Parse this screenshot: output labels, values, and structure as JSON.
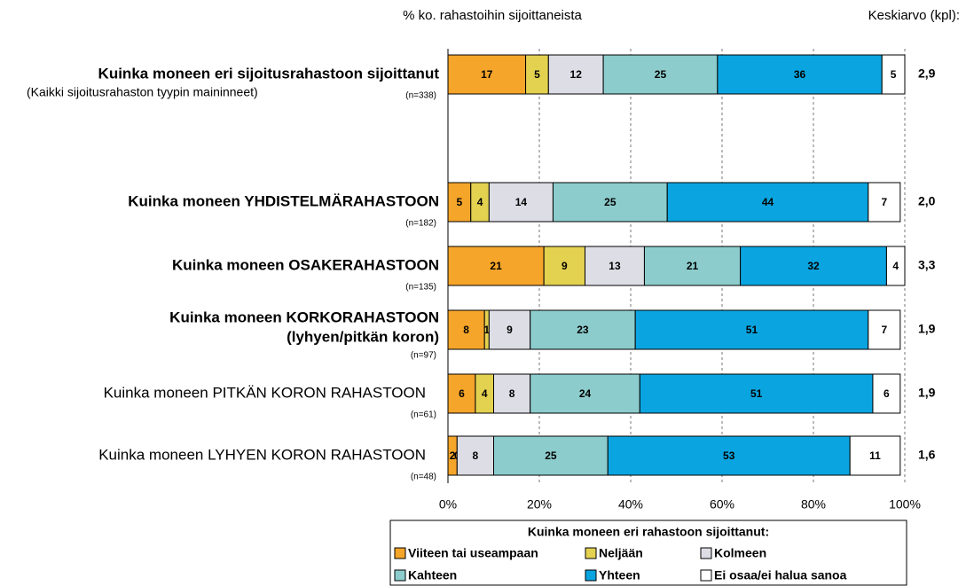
{
  "chart_data": {
    "type": "stacked-bar-horizontal",
    "value_axis_title": "% ko. rahastoihin sijoittaneista",
    "mean_title": "Keskiarvo (kpl):",
    "legend_title": "Kuinka moneen eri rahastoon sijoittanut:",
    "categories": [
      [
        "Kuinka moneen eri sijoitusrahastoon sijoittanut"
      ],
      [
        "Kuinka moneen YHDISTELMÄRAHASTOON"
      ],
      [
        "Kuinka moneen OSAKERAHASTOON"
      ],
      [
        "Kuinka moneen KORKORAHASTOON",
        "(lyhyen/pitkän koron)"
      ],
      [
        "Kuinka moneen PITKÄN KORON RAHASTOON"
      ],
      [
        "Kuinka moneen LYHYEN KORON RAHASTOON"
      ]
    ],
    "category_bold": [
      true,
      true,
      true,
      true,
      false,
      false
    ],
    "notes": [
      "(Kaikki sijoitusrahaston tyypin maininneet)",
      null,
      null,
      null,
      null,
      null
    ],
    "n_labels": [
      "(n=338)",
      "(n=182)",
      "(n=135)",
      "(n=97)",
      "(n=61)",
      "(n=48)"
    ],
    "means": [
      2.9,
      2.0,
      3.3,
      1.9,
      1.9,
      1.6
    ],
    "mean_labels": [
      "2,9",
      "2,0",
      "3,3",
      "1,9",
      "1,9",
      "1,6"
    ],
    "series": [
      {
        "name": "Viiteen tai useampaan",
        "color": "#f5a52a",
        "values": [
          17,
          5,
          21,
          8,
          6,
          2
        ]
      },
      {
        "name": "Neljään",
        "color": "#e3d150",
        "values": [
          5,
          4,
          9,
          1,
          4,
          0
        ]
      },
      {
        "name": "Kolmeen",
        "color": "#dddde6",
        "values": [
          12,
          14,
          13,
          9,
          8,
          8
        ]
      },
      {
        "name": "Kahteen",
        "color": "#8ccccc",
        "values": [
          25,
          25,
          21,
          23,
          24,
          25
        ]
      },
      {
        "name": "Yhteen",
        "color": "#0aa5e0",
        "values": [
          36,
          44,
          32,
          51,
          51,
          53
        ]
      },
      {
        "name": "Ei osaa/ei halua sanoa",
        "color": "#ffffff",
        "values": [
          5,
          7,
          4,
          7,
          6,
          11
        ]
      }
    ],
    "xlim": [
      0,
      100
    ],
    "xticks": [
      {
        "value": 0,
        "label": "0%"
      },
      {
        "value": 20,
        "label": "20%"
      },
      {
        "value": 40,
        "label": "40%"
      },
      {
        "value": 60,
        "label": "60%"
      },
      {
        "value": 80,
        "label": "80%"
      },
      {
        "value": 100,
        "label": "100%"
      }
    ],
    "grid": true
  }
}
